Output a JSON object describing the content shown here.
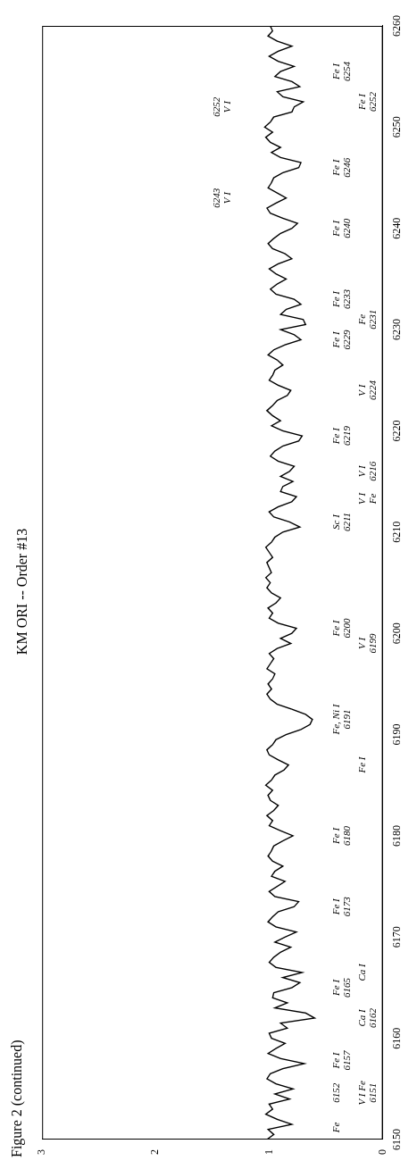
{
  "chart_data": {
    "type": "line",
    "figure_label": "Figure 2 (continued)",
    "title": "KM ORI -- Order #13",
    "color": "#000000",
    "grid": false,
    "xlim": [
      6150,
      6260
    ],
    "xticks": [
      6150,
      6160,
      6170,
      6180,
      6190,
      6200,
      6210,
      6220,
      6230,
      6240,
      6250,
      6260
    ],
    "ylim": [
      0,
      3
    ],
    "yticks": [
      0,
      1,
      2,
      3
    ],
    "x": [
      6150,
      6150.5,
      6151,
      6151.5,
      6152,
      6152.5,
      6153,
      6153.5,
      6154,
      6154.5,
      6155,
      6155.5,
      6156,
      6156.5,
      6157,
      6157.5,
      6158,
      6158.5,
      6159,
      6159.5,
      6160,
      6160.5,
      6161,
      6161.5,
      6162,
      6162.5,
      6163,
      6163.5,
      6164,
      6164.5,
      6165,
      6165.5,
      6166,
      6166.5,
      6167,
      6167.5,
      6168,
      6168.5,
      6169,
      6169.5,
      6170,
      6170.5,
      6171,
      6171.5,
      6172,
      6172.5,
      6173,
      6173.5,
      6174,
      6174.5,
      6175,
      6175.5,
      6176,
      6176.5,
      6177,
      6177.5,
      6178,
      6178.5,
      6179,
      6179.5,
      6180,
      6180.5,
      6181,
      6181.5,
      6182,
      6182.5,
      6183,
      6183.5,
      6184,
      6184.5,
      6185,
      6185.5,
      6186,
      6186.5,
      6187,
      6187.5,
      6188,
      6188.5,
      6189,
      6189.5,
      6190,
      6190.5,
      6191,
      6191.5,
      6192,
      6192.5,
      6193,
      6193.5,
      6194,
      6194.5,
      6195,
      6195.5,
      6196,
      6196.5,
      6197,
      6197.5,
      6198,
      6198.5,
      6199,
      6199.5,
      6200,
      6200.5,
      6201,
      6201.5,
      6202,
      6202.5,
      6203,
      6203.5,
      6204,
      6204.5,
      6205,
      6205.5,
      6206,
      6206.5,
      6207,
      6207.5,
      6208,
      6208.5,
      6209,
      6209.5,
      6210,
      6210.5,
      6211,
      6211.5,
      6212,
      6212.5,
      6213,
      6213.5,
      6214,
      6214.5,
      6215,
      6215.5,
      6216,
      6216.5,
      6217,
      6217.5,
      6218,
      6218.5,
      6219,
      6219.5,
      6220,
      6220.5,
      6221,
      6221.5,
      6222,
      6222.5,
      6223,
      6223.5,
      6224,
      6224.5,
      6225,
      6225.5,
      6226,
      6226.5,
      6227,
      6227.5,
      6228,
      6228.5,
      6229,
      6229.5,
      6230,
      6230.5,
      6231,
      6231.5,
      6232,
      6232.5,
      6233,
      6233.5,
      6234,
      6234.5,
      6235,
      6235.5,
      6236,
      6236.5,
      6237,
      6237.5,
      6238,
      6238.5,
      6239,
      6239.5,
      6240,
      6240.5,
      6241,
      6241.5,
      6242,
      6242.5,
      6243,
      6243.5,
      6244,
      6244.5,
      6245,
      6245.5,
      6246,
      6246.5,
      6247,
      6247.5,
      6248,
      6248.5,
      6249,
      6249.5,
      6250,
      6250.5,
      6251,
      6251.5,
      6252,
      6252.5,
      6253,
      6253.5,
      6254,
      6254.5,
      6255,
      6255.5,
      6256,
      6256.5,
      6257,
      6257.5,
      6258,
      6258.5,
      6259,
      6259.5,
      6260
    ],
    "values": [
      1.02,
      0.96,
      1.01,
      0.8,
      0.93,
      1.03,
      0.97,
      1.0,
      0.82,
      0.95,
      0.79,
      0.94,
      1.02,
      0.99,
      0.88,
      0.69,
      0.9,
      1.01,
      0.94,
      0.86,
      0.98,
      1.0,
      0.84,
      0.9,
      0.6,
      0.68,
      0.95,
      0.84,
      0.97,
      0.96,
      0.8,
      0.73,
      0.88,
      0.71,
      0.94,
      1.0,
      0.96,
      0.9,
      0.81,
      0.95,
      0.86,
      0.76,
      0.94,
      1.01,
      0.97,
      0.92,
      0.78,
      0.74,
      0.95,
      1.0,
      0.93,
      0.86,
      0.98,
      0.95,
      0.88,
      0.97,
      1.01,
      0.98,
      0.96,
      0.88,
      0.79,
      0.9,
      1.0,
      0.97,
      1.02,
      0.96,
      0.92,
      0.99,
      1.01,
      0.97,
      1.03,
      0.98,
      0.95,
      0.87,
      0.83,
      0.92,
      1.0,
      1.02,
      0.97,
      0.94,
      0.85,
      0.72,
      0.64,
      0.62,
      0.68,
      0.8,
      0.93,
      0.99,
      1.02,
      0.98,
      1.01,
      0.97,
      0.95,
      1.02,
      0.99,
      0.96,
      1.0,
      0.93,
      0.81,
      0.9,
      0.8,
      0.76,
      0.92,
      1.0,
      0.97,
      1.01,
      0.94,
      0.9,
      0.98,
      1.02,
      0.99,
      1.03,
      0.98,
      1.0,
      1.02,
      0.97,
      1.0,
      1.03,
      0.98,
      0.95,
      0.88,
      0.73,
      0.82,
      0.96,
      1.0,
      0.92,
      0.8,
      0.76,
      0.9,
      0.88,
      0.79,
      0.9,
      0.82,
      0.78,
      0.92,
      0.99,
      0.95,
      0.88,
      0.74,
      0.71,
      0.88,
      0.98,
      0.9,
      0.97,
      1.02,
      0.97,
      0.93,
      0.84,
      0.81,
      0.92,
      1.0,
      0.97,
      0.95,
      0.88,
      0.93,
      1.01,
      0.96,
      0.86,
      0.72,
      0.78,
      0.9,
      0.68,
      0.7,
      0.9,
      0.85,
      0.72,
      0.78,
      0.94,
      0.99,
      0.93,
      0.85,
      0.94,
      1.0,
      0.92,
      0.8,
      0.86,
      0.97,
      1.01,
      0.96,
      0.9,
      0.8,
      0.75,
      0.88,
      0.99,
      1.02,
      0.94,
      0.85,
      0.93,
      1.01,
      0.98,
      0.96,
      0.88,
      0.74,
      0.72,
      0.9,
      0.98,
      0.9,
      0.99,
      1.03,
      0.97,
      1.04,
      0.99,
      0.96,
      0.8,
      0.78,
      0.7,
      0.88,
      0.93,
      0.73,
      0.8,
      0.95,
      0.9,
      0.78,
      0.92,
      1.0,
      0.92,
      0.8,
      0.93,
      1.01,
      0.97,
      0.99
    ],
    "annotations": [
      {
        "text": "Fe",
        "x": 6151.2,
        "y": 0.45
      },
      {
        "text": "6152",
        "x": 6154.6,
        "y": 0.45
      },
      {
        "text": "V I Fe\n6151",
        "x": 6154.6,
        "y": 0.22
      },
      {
        "text": "Fe I\n6157",
        "x": 6157.8,
        "y": 0.45
      },
      {
        "text": "Ca I\n6162",
        "x": 6162,
        "y": 0.22
      },
      {
        "text": "Fe I\n6165",
        "x": 6165,
        "y": 0.45
      },
      {
        "text": "Ca I",
        "x": 6166.5,
        "y": 0.22
      },
      {
        "text": "Fe I\n6173",
        "x": 6173,
        "y": 0.45
      },
      {
        "text": "Fe I\n6180",
        "x": 6180,
        "y": 0.45
      },
      {
        "text": "Fe I",
        "x": 6187,
        "y": 0.22
      },
      {
        "text": "Fe, Ni I\n6191",
        "x": 6191.5,
        "y": 0.45
      },
      {
        "text": "V I\n6199",
        "x": 6199,
        "y": 0.22
      },
      {
        "text": "Fe I\n6200",
        "x": 6200.5,
        "y": 0.45
      },
      {
        "text": "Sc I\n6211",
        "x": 6211,
        "y": 0.45
      },
      {
        "text": "V I\nFe",
        "x": 6213.3,
        "y": 0.22
      },
      {
        "text": "V I\n6216",
        "x": 6216,
        "y": 0.22
      },
      {
        "text": "Fe I\n6219",
        "x": 6219.5,
        "y": 0.45
      },
      {
        "text": "V I\n6224",
        "x": 6224,
        "y": 0.22
      },
      {
        "text": "Fe I\n6229",
        "x": 6229,
        "y": 0.45
      },
      {
        "text": "Fe\n6231",
        "x": 6231,
        "y": 0.22
      },
      {
        "text": "Fe I\n6233",
        "x": 6233,
        "y": 0.45
      },
      {
        "text": "Fe I\n6240",
        "x": 6240,
        "y": 0.45
      },
      {
        "text": "6243\nV I",
        "x": 6243,
        "y": 1.5
      },
      {
        "text": "Fe I\n6246",
        "x": 6246,
        "y": 0.45
      },
      {
        "text": "6252\nV I",
        "x": 6252,
        "y": 1.5
      },
      {
        "text": "Fe I\n6252",
        "x": 6252.5,
        "y": 0.22
      },
      {
        "text": "Fe I\n6254",
        "x": 6255.5,
        "y": 0.45
      }
    ]
  }
}
